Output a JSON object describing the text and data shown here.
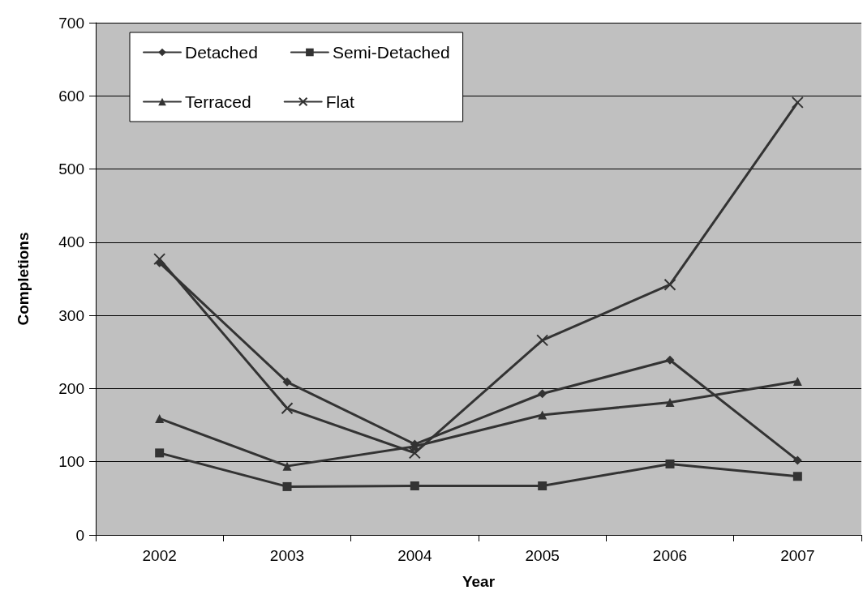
{
  "chart_data": {
    "type": "line",
    "xlabel": "Year",
    "ylabel": "Completions",
    "categories": [
      "2002",
      "2003",
      "2004",
      "2005",
      "2006",
      "2007"
    ],
    "ylim": [
      0,
      700
    ],
    "yticks": [
      0,
      100,
      200,
      300,
      400,
      500,
      600,
      700
    ],
    "grid": "y",
    "legend": "top left",
    "line_style": "solid",
    "series": [
      {
        "name": "Detached",
        "color": "#333333",
        "marker": "diamond",
        "values": [
          372,
          209,
          124,
          193,
          239,
          102
        ]
      },
      {
        "name": "Semi-Detached",
        "color": "#333333",
        "marker": "square",
        "values": [
          112,
          66,
          67,
          67,
          97,
          80
        ]
      },
      {
        "name": "Terraced",
        "color": "#333333",
        "marker": "triangle",
        "values": [
          159,
          94,
          121,
          164,
          181,
          210
        ]
      },
      {
        "name": "Flat",
        "color": "#333333",
        "marker": "cross",
        "values": [
          377,
          173,
          112,
          266,
          342,
          591
        ]
      }
    ]
  }
}
